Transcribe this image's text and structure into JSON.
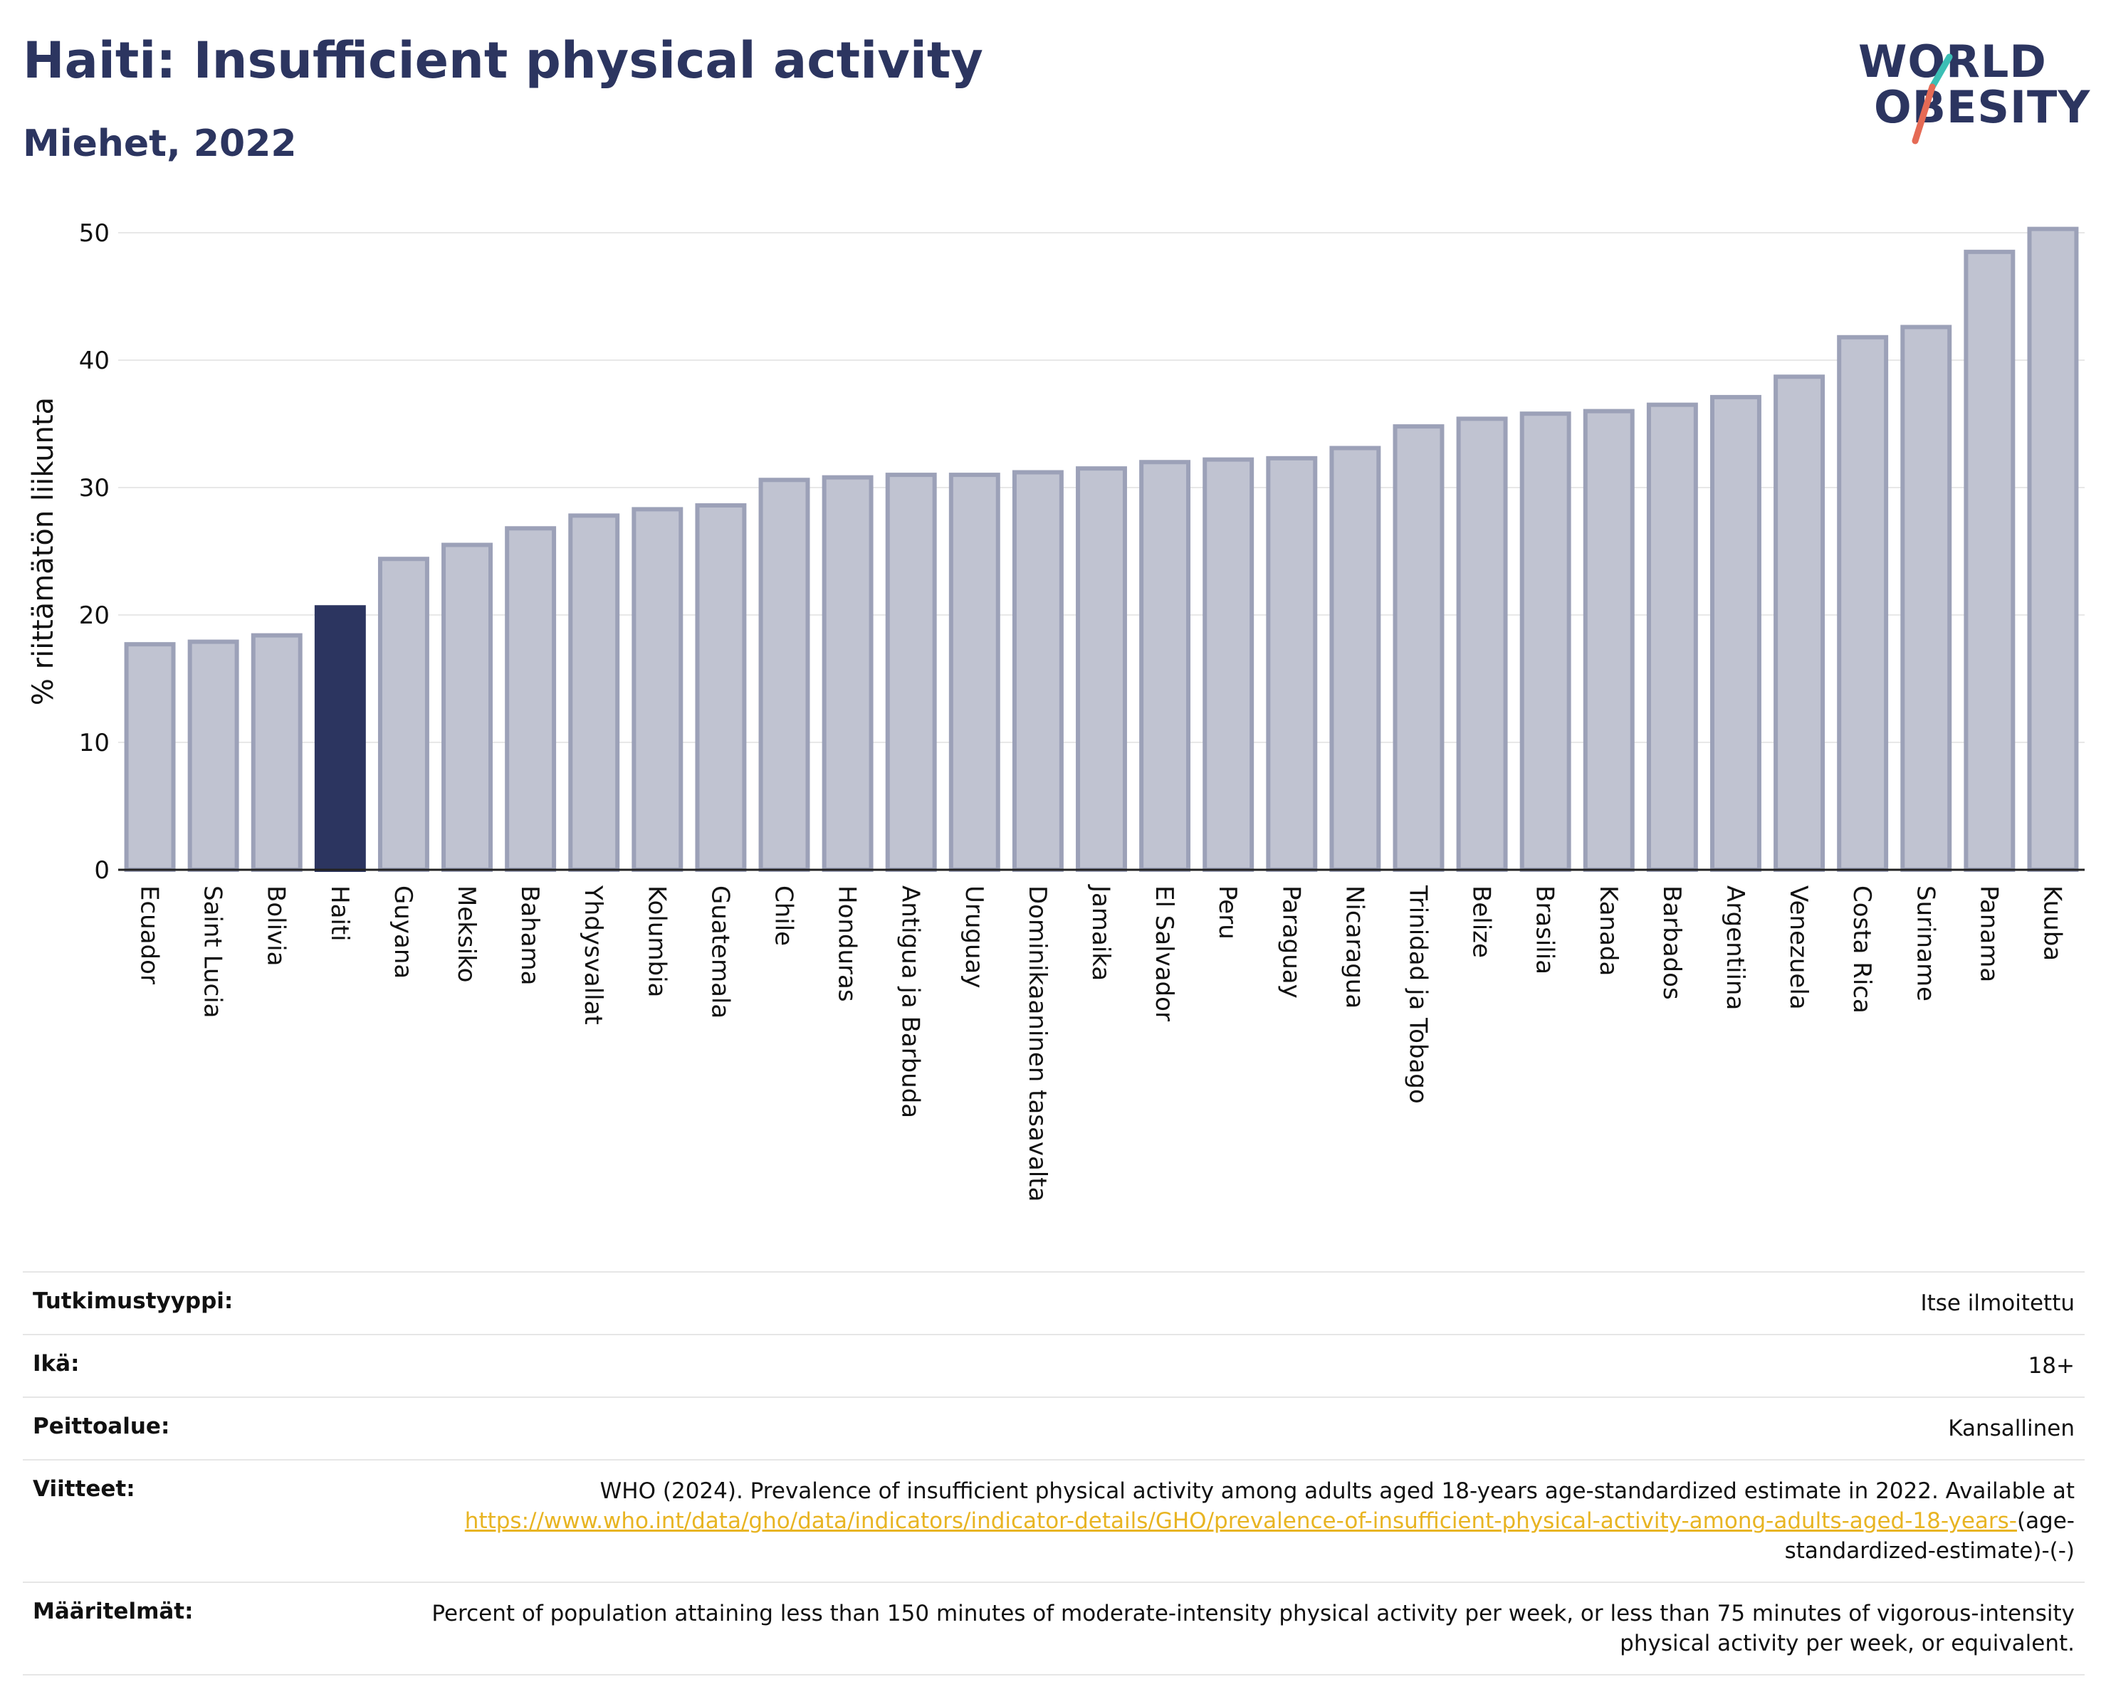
{
  "header": {
    "title": "Haiti: Insufficient physical activity",
    "subtitle": "Miehet, 2022"
  },
  "logo": {
    "line1": "WORLD",
    "line2": "OBESITY",
    "slash_colors": [
      "#3bbfb5",
      "#e56a55"
    ]
  },
  "colors": {
    "highlight": "#2c3560",
    "bar_fill": "#c0c3d1",
    "bar_stroke": "#9ca1b8",
    "title": "#2c3560",
    "link": "#e8b422"
  },
  "chart_data": {
    "type": "bar",
    "ylabel": "% riittämätön liikunta",
    "ylim": [
      0,
      50
    ],
    "yticks": [
      0,
      10,
      20,
      30,
      40,
      50
    ],
    "grid": true,
    "highlight": "Haiti",
    "categories": [
      "Ecuador",
      "Saint Lucia",
      "Bolivia",
      "Haiti",
      "Guyana",
      "Meksiko",
      "Bahama",
      "Yhdysvallat",
      "Kolumbia",
      "Guatemala",
      "Chile",
      "Honduras",
      "Antigua ja Barbuda",
      "Uruguay",
      "Dominikaaninen tasavalta",
      "Jamaika",
      "El Salvador",
      "Peru",
      "Paraguay",
      "Nicaragua",
      "Trinidad ja Tobago",
      "Belize",
      "Brasilia",
      "Kanada",
      "Barbados",
      "Argentiina",
      "Venezuela",
      "Costa Rica",
      "Suriname",
      "Panama",
      "Kuuba"
    ],
    "values": [
      17.7,
      17.9,
      18.4,
      20.6,
      24.4,
      25.5,
      26.8,
      27.8,
      28.3,
      28.6,
      30.6,
      30.8,
      31.0,
      31.0,
      31.2,
      31.5,
      32.0,
      32.2,
      32.3,
      33.1,
      34.8,
      35.4,
      35.8,
      36.0,
      36.5,
      37.1,
      38.7,
      41.8,
      42.6,
      48.5,
      50.3
    ]
  },
  "meta": {
    "rows": [
      {
        "label": "Tutkimustyyppi:",
        "value": "Itse ilmoitettu"
      },
      {
        "label": "Ikä:",
        "value": "18+"
      },
      {
        "label": "Peittoalue:",
        "value": "Kansallinen"
      }
    ],
    "references": {
      "label": "Viitteet:",
      "text": "WHO (2024). Prevalence of insufficient physical activity among adults aged 18-years age-standardized estimate in 2022. Available at",
      "link": "https://www.who.int/data/gho/data/indicators/indicator-details/GHO/prevalence-of-insufficient-physical-activity-among-adults-aged-18-years-",
      "suffix": "(age-standardized-estimate)-(-)"
    },
    "definitions": {
      "label": "Määritelmät:",
      "value": "Percent of population attaining less than 150 minutes of moderate-intensity physical activity per week, or less than 75 minutes of vigorous-intensity physical activity per week, or equivalent."
    }
  }
}
